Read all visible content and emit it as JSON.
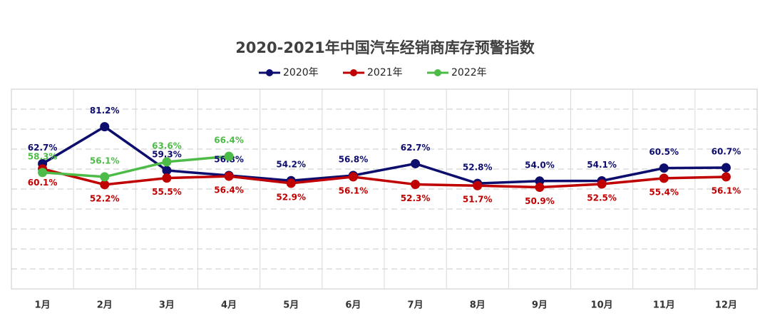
{
  "chart_data": {
    "type": "line",
    "title": "2020-2021年中国汽车经销商库存预警指数",
    "categories": [
      "1月",
      "2月",
      "3月",
      "4月",
      "5月",
      "6月",
      "7月",
      "8月",
      "9月",
      "10月",
      "11月",
      "12月"
    ],
    "series": [
      {
        "name": "2020年",
        "color": "#0d0d6e",
        "label_side": "above",
        "values": [
          62.7,
          81.2,
          59.3,
          56.8,
          54.2,
          56.8,
          62.7,
          52.8,
          54.0,
          54.1,
          60.5,
          60.7
        ],
        "value_labels": [
          "62.7%",
          "81.2%",
          "59.3%",
          "56.8%",
          "54.2%",
          "56.8%",
          "62.7%",
          "52.8%",
          "54.0%",
          "54.1%",
          "60.5%",
          "60.7%"
        ]
      },
      {
        "name": "2021年",
        "color": "#c00000",
        "label_side": "below",
        "values": [
          60.1,
          52.2,
          55.5,
          56.4,
          52.9,
          56.1,
          52.3,
          51.7,
          50.9,
          52.5,
          55.4,
          56.1
        ],
        "value_labels": [
          "60.1%",
          "52.2%",
          "55.5%",
          "56.4%",
          "52.9%",
          "56.1%",
          "52.3%",
          "51.7%",
          "50.9%",
          "52.5%",
          "55.4%",
          "56.1%"
        ]
      },
      {
        "name": "2022年",
        "color": "#4cbb47",
        "label_side": "above",
        "values": [
          58.3,
          56.1,
          63.6,
          66.4,
          null,
          null,
          null,
          null,
          null,
          null,
          null,
          null
        ],
        "value_labels": [
          "58.3%",
          "56.1%",
          "63.6%",
          "66.4%",
          null,
          null,
          null,
          null,
          null,
          null,
          null,
          null
        ]
      }
    ],
    "ylim": [
      0,
      100
    ],
    "yticks": [
      0,
      10,
      20,
      30,
      40,
      50,
      60,
      70,
      80,
      90,
      100
    ],
    "grid": true
  }
}
